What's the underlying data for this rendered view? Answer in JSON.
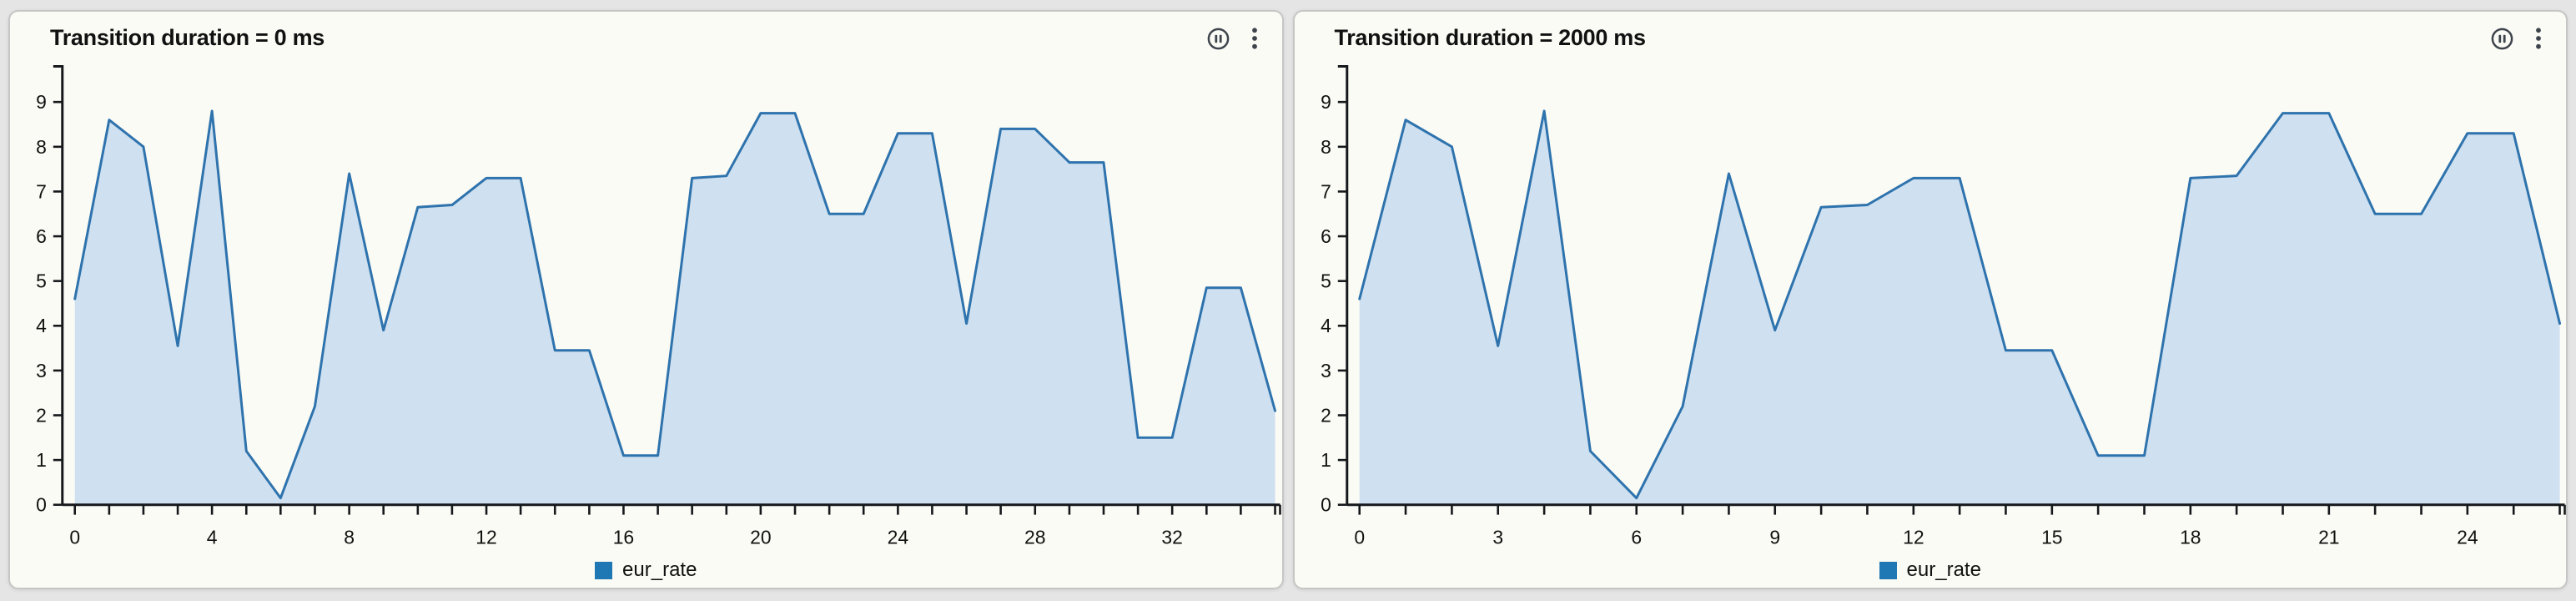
{
  "colors": {
    "page_bg": "#e5e5e5",
    "panel_bg": "#fbfbf5",
    "panel_border": "#c6c6c6",
    "axis": "#15181b",
    "text": "#111111",
    "icon": "#3d444c",
    "line": "#2e73ad",
    "fill": "#cfe0f0",
    "legend_swatch": "#1f77b4"
  },
  "panels": [
    {
      "title": "Transition duration = 0 ms",
      "legend_label": "eur_rate"
    },
    {
      "title": "Transition duration = 2000 ms",
      "legend_label": "eur_rate"
    }
  ],
  "chart_data": [
    {
      "type": "area",
      "title": "Transition duration = 0 ms",
      "x": [
        0,
        1,
        2,
        3,
        4,
        5,
        6,
        7,
        8,
        9,
        10,
        11,
        12,
        13,
        14,
        15,
        16,
        17,
        18,
        19,
        20,
        21,
        22,
        23,
        24,
        25,
        26,
        27,
        28,
        29,
        30,
        31,
        32,
        33,
        34,
        35
      ],
      "series": [
        {
          "name": "eur_rate",
          "values": [
            4.6,
            8.6,
            8.0,
            3.55,
            8.8,
            1.2,
            0.15,
            2.2,
            7.4,
            3.9,
            6.65,
            6.7,
            7.3,
            7.3,
            3.45,
            3.45,
            1.1,
            1.1,
            7.3,
            7.35,
            8.75,
            8.75,
            6.5,
            6.5,
            8.3,
            8.3,
            4.05,
            8.4,
            8.4,
            7.65,
            7.65,
            1.5,
            1.5,
            4.85,
            4.85,
            2.1
          ]
        }
      ],
      "x_tick_labels": [
        0,
        4,
        8,
        12,
        16,
        20,
        24,
        28,
        32
      ],
      "x_minor_tick_step": 1,
      "y_ticks": [
        0,
        1,
        2,
        3,
        4,
        5,
        6,
        7,
        8,
        9
      ],
      "xlim": [
        -0.36,
        35.3
      ],
      "ylim": [
        0,
        9.8
      ],
      "grid": false,
      "legend_position": "bottom-center",
      "xlabel": "",
      "ylabel": ""
    },
    {
      "type": "area",
      "title": "Transition duration = 2000 ms",
      "x": [
        0,
        1,
        2,
        3,
        4,
        5,
        6,
        7,
        8,
        9,
        10,
        11,
        12,
        13,
        14,
        15,
        16,
        17,
        18,
        19,
        20,
        21,
        22,
        23,
        24,
        25,
        26
      ],
      "series": [
        {
          "name": "eur_rate",
          "values": [
            4.6,
            8.6,
            8.0,
            3.55,
            8.8,
            1.2,
            0.15,
            2.2,
            7.4,
            3.9,
            6.65,
            6.7,
            7.3,
            7.3,
            3.45,
            3.45,
            1.1,
            1.1,
            7.3,
            7.35,
            8.75,
            8.75,
            6.5,
            6.5,
            8.3,
            8.3,
            4.05
          ]
        }
      ],
      "x_tick_labels": [
        0,
        3,
        6,
        9,
        12,
        15,
        18,
        21,
        24
      ],
      "x_minor_tick_step": 1,
      "y_ticks": [
        0,
        1,
        2,
        3,
        4,
        5,
        6,
        7,
        8,
        9
      ],
      "xlim": [
        -0.27,
        26.2
      ],
      "ylim": [
        0,
        9.8
      ],
      "grid": false,
      "legend_position": "bottom-center",
      "xlabel": "",
      "ylabel": ""
    }
  ]
}
